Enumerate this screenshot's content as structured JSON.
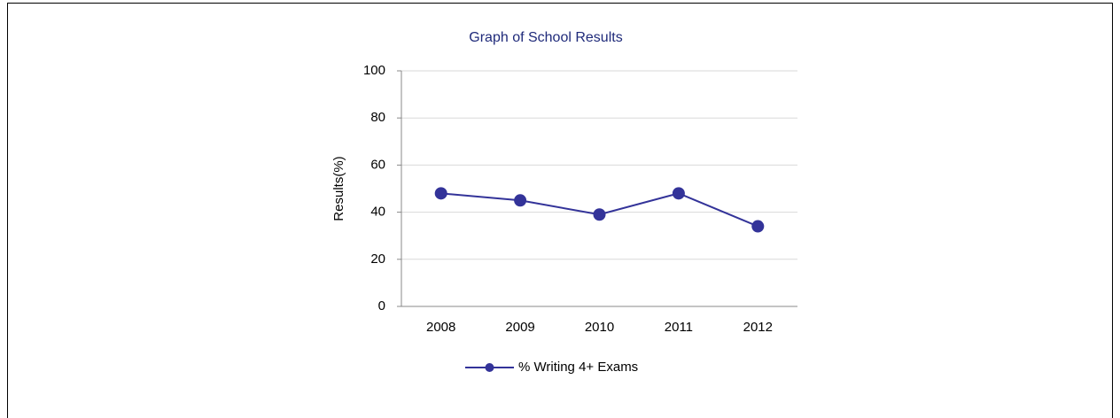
{
  "chart_data": {
    "type": "line",
    "title": "Graph of School Results",
    "y_label": "Results(%)",
    "categories": [
      "2008",
      "2009",
      "2010",
      "2011",
      "2012"
    ],
    "series": [
      {
        "name": "% Writing 4+ Exams",
        "color": "#333399",
        "values": [
          48,
          45,
          39,
          48,
          34
        ]
      }
    ],
    "ylim": [
      0,
      100
    ],
    "yticks": [
      0,
      20,
      40,
      60,
      80,
      100
    ],
    "grid": true,
    "legend": "bottom"
  }
}
